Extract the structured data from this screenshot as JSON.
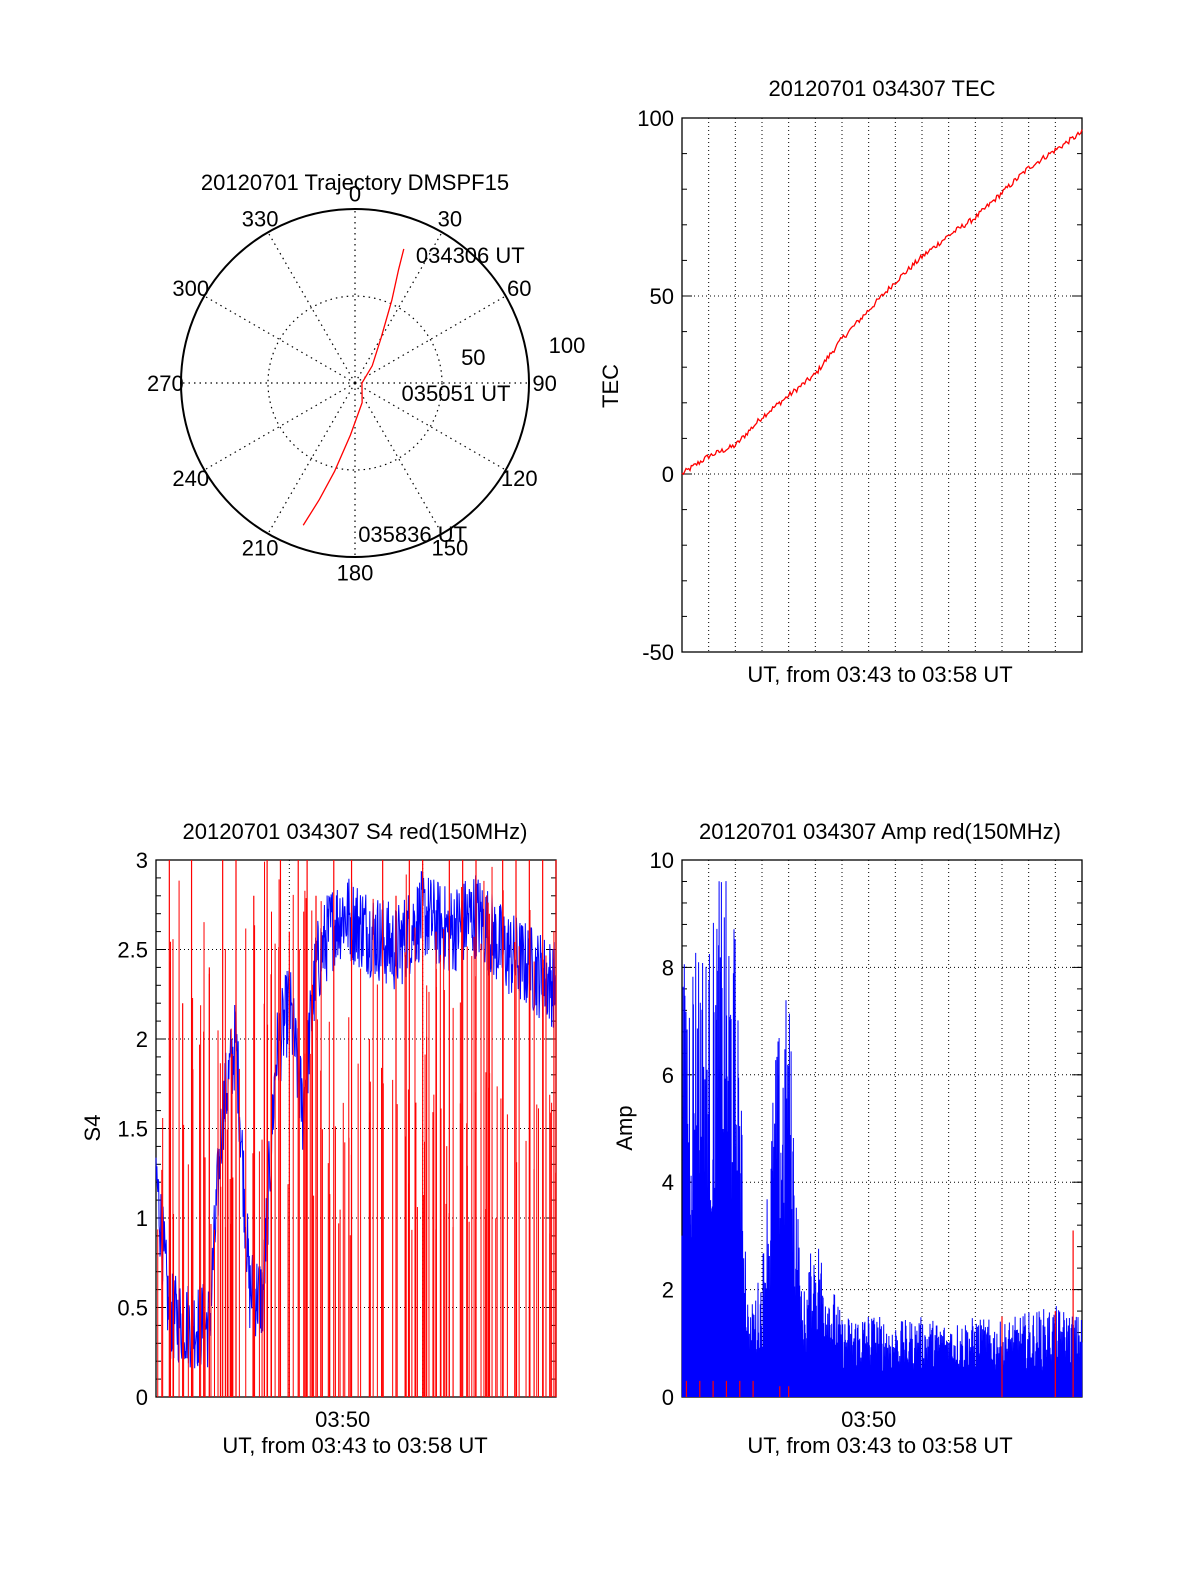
{
  "colors": {
    "red": "#ff0000",
    "blue": "#0000ff",
    "axis": "#000000",
    "grid": "#000000",
    "background": "#ffffff"
  },
  "chart_data": [
    {
      "id": "trajectory",
      "type": "scatter",
      "subtype": "polar",
      "title": "20120701 Trajectory DMSPF15",
      "azimuth_labels": [
        "0",
        "30",
        "60",
        "90",
        "120",
        "150",
        "180",
        "210",
        "240",
        "270",
        "300",
        "330"
      ],
      "radius_labels": [
        "50",
        "100"
      ],
      "rlim": [
        0,
        100
      ],
      "track": {
        "color": "red",
        "points": [
          {
            "az": 20,
            "r": 82
          },
          {
            "az": 21,
            "r": 70
          },
          {
            "az": 24,
            "r": 52
          },
          {
            "az": 30,
            "r": 30
          },
          {
            "az": 45,
            "r": 14
          },
          {
            "az": 90,
            "r": 4
          },
          {
            "az": 160,
            "r": 12
          },
          {
            "az": 185,
            "r": 30
          },
          {
            "az": 193,
            "r": 52
          },
          {
            "az": 197,
            "r": 70
          },
          {
            "az": 200,
            "r": 87
          }
        ]
      },
      "annotations": [
        {
          "text": "034306 UT",
          "az": 29,
          "r": 84
        },
        {
          "text": "035051 UT",
          "az": 100,
          "r": 33
        },
        {
          "text": "035836 UT",
          "az": 175,
          "r": 87
        }
      ]
    },
    {
      "id": "tec",
      "type": "line",
      "title": "20120701 034307 TEC",
      "xlabel": "UT, from 03:43 to 03:58 UT",
      "ylabel": "TEC",
      "xlim": [
        "03:43",
        "03:58"
      ],
      "ylim": [
        -50,
        100
      ],
      "yticks": [
        "100",
        "50",
        "0",
        "-50"
      ],
      "xgrid_count": 15,
      "series": [
        {
          "color": "red",
          "x": [
            "03:43:00",
            "03:44:00",
            "03:45:00",
            "03:46:00",
            "03:47:00",
            "03:48:00",
            "03:49:00",
            "03:50:00",
            "03:51:00",
            "03:52:00",
            "03:53:00",
            "03:54:00",
            "03:55:00",
            "03:56:00",
            "03:57:00",
            "03:58:00"
          ],
          "values": [
            0,
            5,
            8,
            16,
            22,
            28,
            38,
            46,
            54,
            61,
            67,
            72,
            79,
            86,
            91,
            96
          ]
        }
      ]
    },
    {
      "id": "s4",
      "type": "line",
      "title": "20120701 034307 S4 red(150MHz)",
      "xlabel": "UT, from 03:43 to 03:58 UT",
      "ylabel": "S4",
      "xlim": [
        "03:43",
        "03:58"
      ],
      "ylim": [
        0,
        3
      ],
      "yticks": [
        "3",
        "2.5",
        "2",
        "1.5",
        "1",
        "0.5",
        "0"
      ],
      "xticks": [
        "03:50"
      ],
      "xgrid_count": 3,
      "series": [
        {
          "color": "blue",
          "x": [
            "03:43:00",
            "03:43:30",
            "03:44:00",
            "03:44:30",
            "03:45:00",
            "03:45:30",
            "03:46:00",
            "03:46:30",
            "03:47:00",
            "03:47:30",
            "03:48:00",
            "03:48:30",
            "03:49:00",
            "03:49:30",
            "03:50:00",
            "03:51:00",
            "03:52:00",
            "03:53:00",
            "03:54:00",
            "03:55:00",
            "03:56:00",
            "03:57:00",
            "03:58:00"
          ],
          "values": [
            1.25,
            0.45,
            0.42,
            0.4,
            0.4,
            1.6,
            2.0,
            0.6,
            0.55,
            1.9,
            2.2,
            1.6,
            2.4,
            2.6,
            2.7,
            2.6,
            2.5,
            2.7,
            2.6,
            2.7,
            2.5,
            2.4,
            2.3
          ]
        },
        {
          "color": "red",
          "style": "spikes",
          "x": [
            "03:43:30",
            "03:44:00",
            "03:44:20",
            "03:45:00",
            "03:45:30",
            "03:46:00",
            "03:46:40",
            "03:47:10",
            "03:47:40",
            "03:48:00",
            "03:48:20",
            "03:48:40",
            "03:49:00",
            "03:49:40",
            "03:50:20",
            "03:51:00",
            "03:51:30",
            "03:52:00",
            "03:52:30",
            "03:53:00",
            "03:53:30",
            "03:54:00",
            "03:54:30",
            "03:55:00",
            "03:55:30",
            "03:56:00",
            "03:56:30",
            "03:57:00",
            "03:57:30",
            "03:58:00"
          ],
          "values": [
            3.0,
            2.2,
            3.0,
            2.4,
            3.0,
            3.0,
            2.8,
            3.0,
            3.0,
            2.6,
            3.0,
            3.0,
            2.8,
            3.0,
            3.0,
            2.0,
            3.0,
            2.8,
            3.0,
            3.0,
            2.6,
            3.0,
            3.0,
            3.0,
            2.7,
            3.0,
            3.0,
            3.0,
            3.0,
            3.0
          ]
        }
      ]
    },
    {
      "id": "amp",
      "type": "line",
      "title": "20120701 034307 Amp red(150MHz)",
      "xlabel": "UT, from 03:43 to 03:58 UT",
      "ylabel": "Amp",
      "xlim": [
        "03:43",
        "03:58"
      ],
      "ylim": [
        0,
        10
      ],
      "yticks": [
        "10",
        "8",
        "6",
        "4",
        "2",
        "0"
      ],
      "xticks": [
        "03:50"
      ],
      "xgrid_count": 15,
      "series": [
        {
          "color": "blue",
          "x": [
            "03:43:00",
            "03:43:30",
            "03:44:00",
            "03:44:30",
            "03:45:00",
            "03:45:30",
            "03:46:00",
            "03:46:30",
            "03:47:00",
            "03:47:30",
            "03:48:00",
            "03:49:00",
            "03:50:00",
            "03:51:00",
            "03:52:00",
            "03:53:00",
            "03:54:00",
            "03:55:00",
            "03:56:00",
            "03:57:00",
            "03:58:00"
          ],
          "values": [
            8.0,
            9.0,
            8.5,
            10.0,
            8.8,
            1.5,
            2.5,
            6.5,
            7.8,
            1.8,
            3.2,
            1.5,
            1.6,
            1.4,
            1.5,
            1.4,
            1.5,
            1.4,
            1.6,
            1.7,
            1.5
          ]
        },
        {
          "color": "red",
          "style": "spikes",
          "x": [
            "03:43:10",
            "03:43:40",
            "03:44:10",
            "03:44:40",
            "03:45:10",
            "03:45:40",
            "03:46:40",
            "03:47:00",
            "03:55:00",
            "03:57:00",
            "03:57:40"
          ],
          "values": [
            0.3,
            0.3,
            0.3,
            0.3,
            0.3,
            0.3,
            0.2,
            0.2,
            1.5,
            1.6,
            3.1
          ]
        }
      ]
    }
  ]
}
